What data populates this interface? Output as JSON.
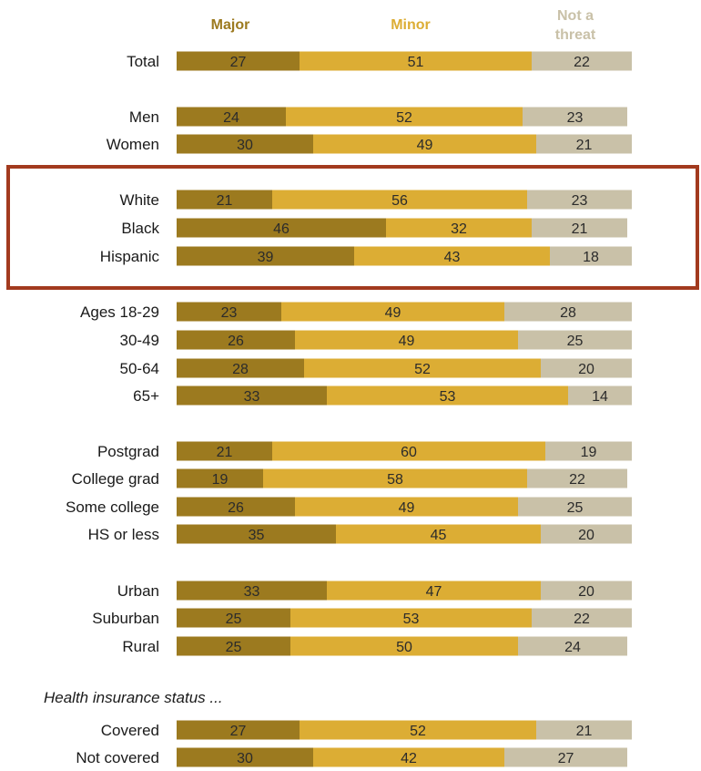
{
  "chart_data": {
    "type": "bar",
    "stacked": true,
    "orientation": "horizontal",
    "series": [
      {
        "name": "Major",
        "color": "#9c7a1f"
      },
      {
        "name": "Minor",
        "color": "#dcad34"
      },
      {
        "name": "Not a threat",
        "color": "#c9c1a8"
      }
    ],
    "legend_header": {
      "major": "Major",
      "minor": "Minor",
      "not_threat_line1": "Not a",
      "not_threat_line2": "threat"
    },
    "note": "Health insurance status ...",
    "groups": [
      {
        "rows": [
          {
            "label": "Total",
            "values": [
              27,
              51,
              22
            ]
          }
        ]
      },
      {
        "rows": [
          {
            "label": "Men",
            "values": [
              24,
              52,
              23
            ]
          },
          {
            "label": "Women",
            "values": [
              30,
              49,
              21
            ]
          }
        ]
      },
      {
        "highlighted": true,
        "rows": [
          {
            "label": "White",
            "values": [
              21,
              56,
              23
            ]
          },
          {
            "label": "Black",
            "values": [
              46,
              32,
              21
            ]
          },
          {
            "label": "Hispanic",
            "values": [
              39,
              43,
              18
            ]
          }
        ]
      },
      {
        "rows": [
          {
            "label": "Ages 18-29",
            "values": [
              23,
              49,
              28
            ]
          },
          {
            "label": "30-49",
            "values": [
              26,
              49,
              25
            ]
          },
          {
            "label": "50-64",
            "values": [
              28,
              52,
              20
            ]
          },
          {
            "label": "65+",
            "values": [
              33,
              53,
              14
            ]
          }
        ]
      },
      {
        "rows": [
          {
            "label": "Postgrad",
            "values": [
              21,
              60,
              19
            ]
          },
          {
            "label": "College grad",
            "values": [
              19,
              58,
              22
            ]
          },
          {
            "label": "Some college",
            "values": [
              26,
              49,
              25
            ]
          },
          {
            "label": "HS or less",
            "values": [
              35,
              45,
              20
            ]
          }
        ]
      },
      {
        "rows": [
          {
            "label": "Urban",
            "values": [
              33,
              47,
              20
            ]
          },
          {
            "label": "Suburban",
            "values": [
              25,
              53,
              22
            ]
          },
          {
            "label": "Rural",
            "values": [
              25,
              50,
              24
            ]
          }
        ]
      },
      {
        "note_before": true,
        "rows": [
          {
            "label": "Covered",
            "values": [
              27,
              52,
              21
            ]
          },
          {
            "label": "Not covered",
            "values": [
              30,
              42,
              27
            ]
          }
        ]
      }
    ],
    "highlight_color": "#a23a1e"
  }
}
